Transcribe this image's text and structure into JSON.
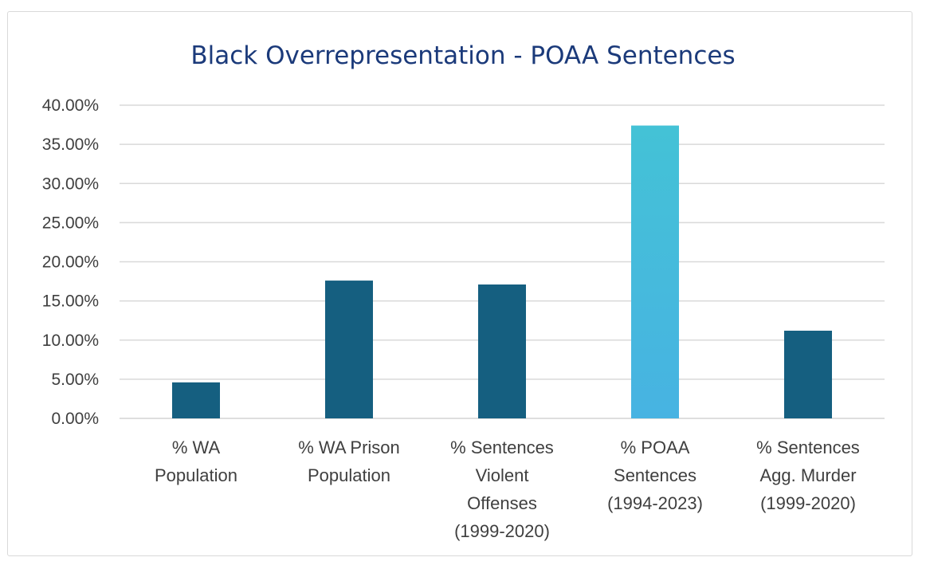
{
  "chart_data": {
    "type": "bar",
    "title": "Black Overrepresentation - POAA Sentences",
    "xlabel": "",
    "ylabel": "",
    "ylim": [
      0,
      40
    ],
    "y_step": 5,
    "y_tick_labels": [
      "0.00%",
      "5.00%",
      "10.00%",
      "15.00%",
      "20.00%",
      "25.00%",
      "30.00%",
      "35.00%",
      "40.00%"
    ],
    "grid": true,
    "categories": [
      [
        "% WA",
        "Population"
      ],
      [
        "% WA Prison",
        "Population"
      ],
      [
        "% Sentences",
        "Violent",
        "Offenses",
        "(1999-2020)"
      ],
      [
        "% POAA",
        "Sentences",
        "(1994-2023)"
      ],
      [
        "% Sentences",
        "Agg. Murder",
        "(1999-2020)"
      ]
    ],
    "values": [
      4.6,
      17.6,
      17.1,
      37.4,
      11.2
    ],
    "highlight_index": 3,
    "colors": {
      "bar": "#155f80",
      "highlight_top": "#44c2d6",
      "highlight_bottom": "#47b3e2",
      "title": "#1b3a7a",
      "axis_text": "#3f3f3f",
      "grid": "#d9d9d9"
    }
  }
}
